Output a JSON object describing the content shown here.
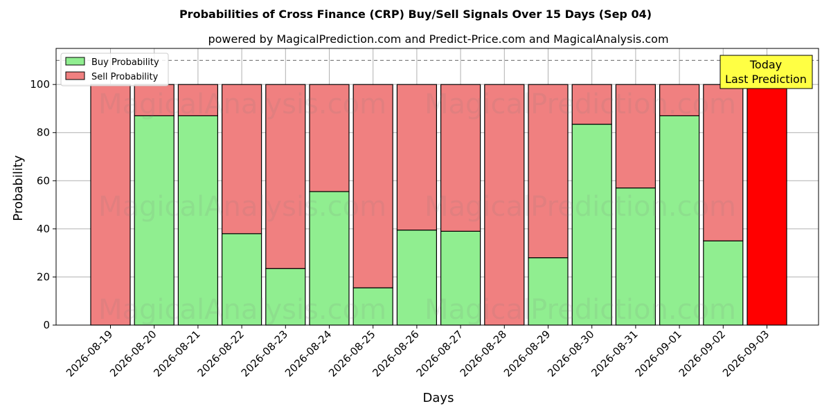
{
  "chart_data": {
    "type": "bar",
    "stacked": true,
    "title": "Probabilities of Cross Finance (CRP) Buy/Sell Signals Over 15 Days (Sep 04)",
    "subtitle": "powered by MagicalPrediction.com and Predict-Price.com and MagicalAnalysis.com",
    "xlabel": "Days",
    "ylabel": "Probability",
    "ylim": [
      0,
      115
    ],
    "yticks": [
      0,
      20,
      40,
      60,
      80,
      100
    ],
    "reference_line": 110,
    "grid": true,
    "legend_position": "top-left",
    "categories": [
      "2026-08-19",
      "2026-08-20",
      "2026-08-21",
      "2026-08-22",
      "2026-08-23",
      "2026-08-24",
      "2026-08-25",
      "2026-08-26",
      "2026-08-27",
      "2026-08-28",
      "2026-08-29",
      "2026-08-30",
      "2026-08-31",
      "2026-09-01",
      "2026-09-02",
      "2026-09-03"
    ],
    "series": [
      {
        "name": "Buy Probability",
        "color": "#90ee90",
        "values": [
          0,
          87,
          87,
          38,
          23.5,
          55.5,
          15.5,
          39.5,
          39,
          0,
          28,
          83.5,
          57,
          87,
          35,
          0
        ]
      },
      {
        "name": "Sell Probability",
        "color": "#f08080",
        "values": [
          100,
          13,
          13,
          62,
          76.5,
          44.5,
          84.5,
          60.5,
          61,
          100,
          72,
          16.5,
          43,
          13,
          65,
          100
        ]
      }
    ],
    "highlight": {
      "category": "2026-09-03",
      "color": "#ff0000"
    },
    "annotation": {
      "line1": "Today",
      "line2": "Last Prediction",
      "color": "#ffff44"
    },
    "watermarks": [
      "MagicalAnalysis.com",
      "MagicalPrediction.com"
    ]
  }
}
